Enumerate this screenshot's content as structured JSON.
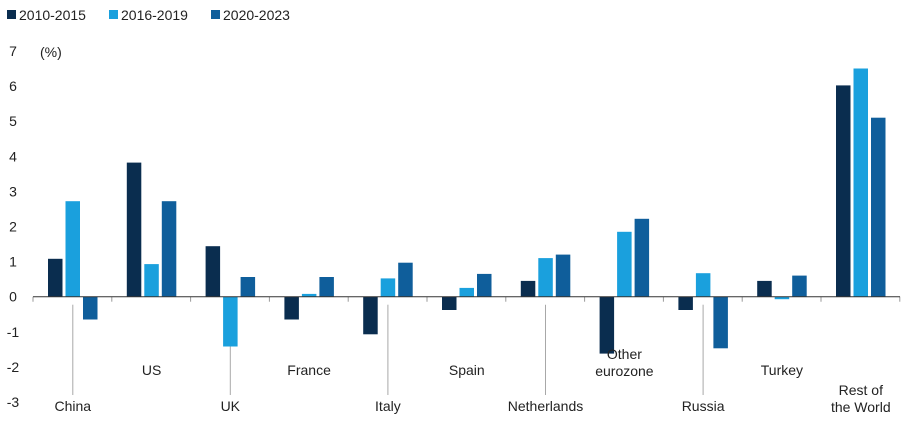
{
  "chart_data": {
    "type": "bar",
    "title": "",
    "xlabel": "",
    "ylabel": "(%)",
    "ylim": [
      -3,
      7
    ],
    "yticks": [
      7,
      6,
      5,
      4,
      3,
      2,
      1,
      0,
      -1,
      -2,
      -3
    ],
    "grid": false,
    "legend_position": "top-left",
    "categories": [
      "China",
      "US",
      "UK",
      "France",
      "Italy",
      "Spain",
      "Netherlands",
      "Other eurozone",
      "Russia",
      "Turkey",
      "Rest of the World"
    ],
    "category_label_lines": [
      [
        "China"
      ],
      [
        "US"
      ],
      [
        "UK"
      ],
      [
        "France"
      ],
      [
        "Italy"
      ],
      [
        "Spain"
      ],
      [
        "Netherlands"
      ],
      [
        "Other",
        "eurozone"
      ],
      [
        "Russia"
      ],
      [
        "Turkey"
      ],
      [
        "Rest of",
        "the World"
      ]
    ],
    "series": [
      {
        "name": "2010-2015",
        "color": "#0a2d4f",
        "values": [
          1.08,
          3.82,
          1.44,
          -0.65,
          -1.07,
          -0.38,
          0.45,
          -1.62,
          -0.38,
          0.45,
          6.02
        ]
      },
      {
        "name": "2016-2019",
        "color": "#1aa0dd",
        "values": [
          2.72,
          0.93,
          -1.42,
          0.08,
          0.52,
          0.25,
          1.1,
          1.85,
          0.67,
          -0.07,
          6.5
        ]
      },
      {
        "name": "2020-2023",
        "color": "#0f5e9b",
        "values": [
          -0.65,
          2.72,
          0.56,
          0.56,
          0.97,
          0.65,
          1.2,
          2.22,
          -1.47,
          0.6,
          5.1
        ]
      }
    ]
  }
}
